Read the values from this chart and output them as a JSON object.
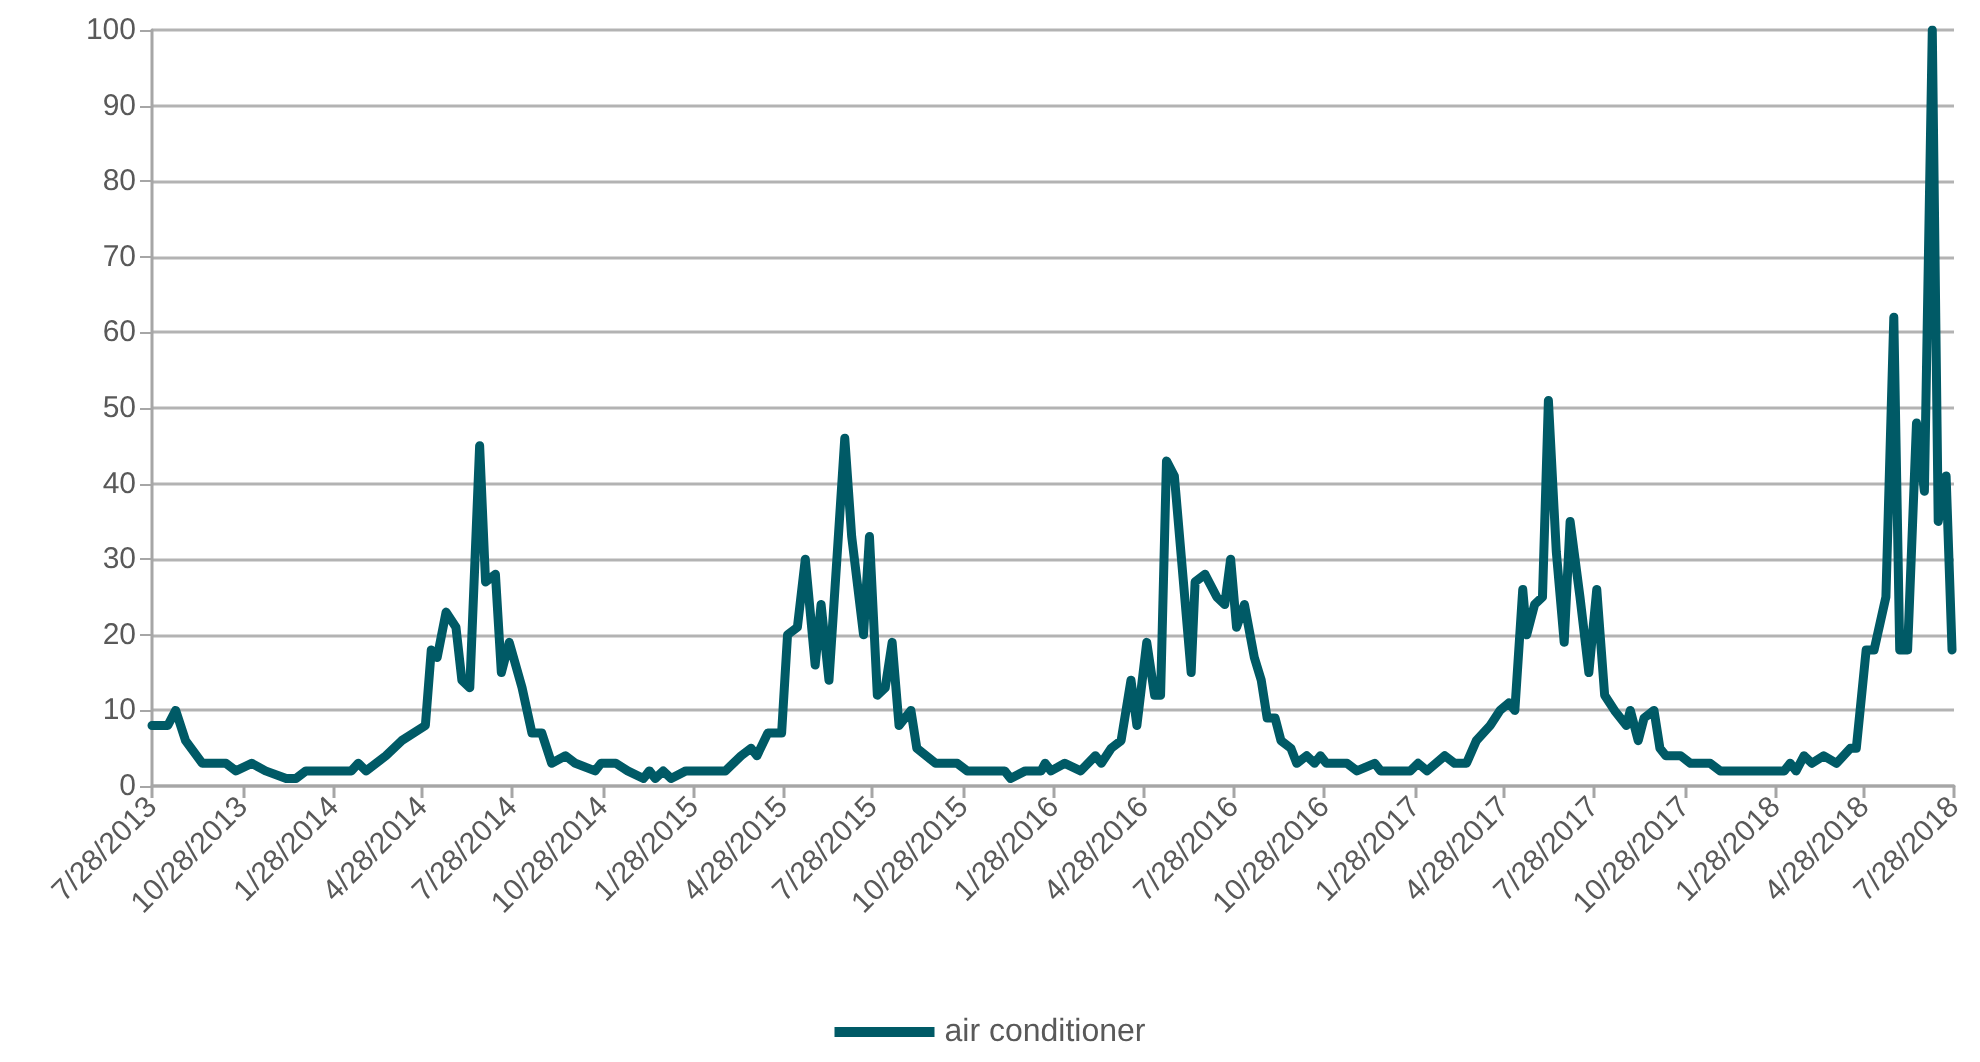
{
  "chart_data": {
    "type": "line",
    "grid": "y",
    "legend": "bottom",
    "marker": "none",
    "line_style": "solid",
    "xlim": [
      "2013-07-28",
      "2018-07-28"
    ],
    "ylim": [
      0,
      100
    ],
    "yticks": [
      0,
      10,
      20,
      30,
      40,
      50,
      60,
      70,
      80,
      90,
      100
    ],
    "xticks": [
      {
        "value": "2013-07-28",
        "label": "7/28/2013"
      },
      {
        "value": "2013-10-28",
        "label": "10/28/2013"
      },
      {
        "value": "2014-01-28",
        "label": "1/28/2014"
      },
      {
        "value": "2014-04-28",
        "label": "4/28/2014"
      },
      {
        "value": "2014-07-28",
        "label": "7/28/2014"
      },
      {
        "value": "2014-10-28",
        "label": "10/28/2014"
      },
      {
        "value": "2015-01-28",
        "label": "1/28/2015"
      },
      {
        "value": "2015-04-28",
        "label": "4/28/2015"
      },
      {
        "value": "2015-07-28",
        "label": "7/28/2015"
      },
      {
        "value": "2015-10-28",
        "label": "10/28/2015"
      },
      {
        "value": "2016-01-28",
        "label": "1/28/2016"
      },
      {
        "value": "2016-04-28",
        "label": "4/28/2016"
      },
      {
        "value": "2016-07-28",
        "label": "7/28/2016"
      },
      {
        "value": "2016-10-28",
        "label": "10/28/2016"
      },
      {
        "value": "2017-01-28",
        "label": "1/28/2017"
      },
      {
        "value": "2017-04-28",
        "label": "4/28/2017"
      },
      {
        "value": "2017-07-28",
        "label": "7/28/2017"
      },
      {
        "value": "2017-10-28",
        "label": "10/28/2017"
      },
      {
        "value": "2018-01-28",
        "label": "1/28/2018"
      },
      {
        "value": "2018-04-28",
        "label": "4/28/2018"
      },
      {
        "value": "2018-07-28",
        "label": "7/28/2018"
      }
    ],
    "x": [
      "2013-07-28",
      "2013-08-13",
      "2013-08-21",
      "2013-08-31",
      "2013-09-17",
      "2013-10-11",
      "2013-10-21",
      "2013-11-06",
      "2013-11-20",
      "2013-12-11",
      "2013-12-21",
      "2013-12-31",
      "2014-02-15",
      "2014-02-22",
      "2014-03-02",
      "2014-03-22",
      "2014-04-07",
      "2014-05-01",
      "2014-05-07",
      "2014-05-13",
      "2014-05-22",
      "2014-06-01",
      "2014-06-07",
      "2014-06-15",
      "2014-06-25",
      "2014-07-01",
      "2014-07-11",
      "2014-07-17",
      "2014-07-25",
      "2014-08-07",
      "2014-08-17",
      "2014-08-27",
      "2014-09-06",
      "2014-09-20",
      "2014-09-30",
      "2014-10-20",
      "2014-10-26",
      "2014-11-10",
      "2014-11-22",
      "2014-12-08",
      "2014-12-14",
      "2014-12-20",
      "2014-12-28",
      "2015-01-05",
      "2015-01-20",
      "2015-03-01",
      "2015-03-17",
      "2015-03-27",
      "2015-04-02",
      "2015-04-13",
      "2015-04-27",
      "2015-05-03",
      "2015-05-13",
      "2015-05-21",
      "2015-05-31",
      "2015-06-06",
      "2015-06-14",
      "2015-06-30",
      "2015-07-07",
      "2015-07-19",
      "2015-07-25",
      "2015-08-02",
      "2015-08-10",
      "2015-08-17",
      "2015-08-24",
      "2015-09-05",
      "2015-09-11",
      "2015-09-30",
      "2015-10-22",
      "2015-11-01",
      "2015-12-09",
      "2015-12-15",
      "2015-12-30",
      "2016-01-15",
      "2016-01-19",
      "2016-01-25",
      "2016-02-08",
      "2016-02-24",
      "2016-03-10",
      "2016-03-16",
      "2016-03-26",
      "2016-04-05",
      "2016-04-15",
      "2016-04-21",
      "2016-05-01",
      "2016-05-09",
      "2016-05-15",
      "2016-05-21",
      "2016-05-29",
      "2016-06-15",
      "2016-06-19",
      "2016-06-29",
      "2016-07-11",
      "2016-07-19",
      "2016-07-25",
      "2016-07-31",
      "2016-08-08",
      "2016-08-18",
      "2016-08-25",
      "2016-08-31",
      "2016-09-08",
      "2016-09-14",
      "2016-09-24",
      "2016-09-30",
      "2016-10-10",
      "2016-10-18",
      "2016-10-24",
      "2016-10-30",
      "2016-11-20",
      "2016-11-30",
      "2016-12-18",
      "2016-12-24",
      "2017-01-23",
      "2017-01-31",
      "2017-02-09",
      "2017-02-27",
      "2017-03-09",
      "2017-03-21",
      "2017-03-31",
      "2017-04-14",
      "2017-04-24",
      "2017-05-03",
      "2017-05-09",
      "2017-05-17",
      "2017-05-21",
      "2017-05-29",
      "2017-06-06",
      "2017-06-12",
      "2017-06-20",
      "2017-06-28",
      "2017-07-04",
      "2017-07-14",
      "2017-07-23",
      "2017-07-31",
      "2017-08-08",
      "2017-08-18",
      "2017-08-30",
      "2017-09-03",
      "2017-09-11",
      "2017-09-17",
      "2017-09-27",
      "2017-10-03",
      "2017-10-09",
      "2017-10-24",
      "2017-11-03",
      "2017-11-23",
      "2017-12-03",
      "2018-02-06",
      "2018-02-12",
      "2018-02-18",
      "2018-02-26",
      "2018-03-06",
      "2018-03-18",
      "2018-03-31",
      "2018-04-14",
      "2018-04-20",
      "2018-04-30",
      "2018-05-08",
      "2018-05-20",
      "2018-05-28",
      "2018-06-03",
      "2018-06-11",
      "2018-06-20",
      "2018-06-28",
      "2018-07-06",
      "2018-07-12",
      "2018-07-20",
      "2018-07-26"
    ],
    "series": [
      {
        "name": "air conditioner",
        "color": "#005a66",
        "values": [
          8,
          8,
          10,
          6,
          3,
          3,
          2,
          3,
          2,
          1,
          1,
          2,
          2,
          3,
          2,
          4,
          6,
          8,
          18,
          17,
          23,
          21,
          14,
          13,
          45,
          27,
          28,
          15,
          19,
          13,
          7,
          7,
          3,
          4,
          3,
          2,
          3,
          3,
          2,
          1,
          2,
          1,
          2,
          1,
          2,
          2,
          4,
          5,
          4,
          7,
          7,
          20,
          21,
          30,
          16,
          24,
          14,
          46,
          33,
          20,
          33,
          12,
          13,
          19,
          8,
          10,
          5,
          3,
          3,
          2,
          2,
          1,
          2,
          2,
          3,
          2,
          3,
          2,
          4,
          3,
          5,
          6,
          14,
          8,
          19,
          12,
          12,
          43,
          41,
          15,
          27,
          28,
          25,
          24,
          30,
          21,
          24,
          17,
          14,
          9,
          9,
          6,
          5,
          3,
          4,
          3,
          4,
          3,
          3,
          2,
          3,
          2,
          2,
          3,
          2,
          4,
          3,
          3,
          6,
          8,
          10,
          11,
          10,
          26,
          20,
          24,
          25,
          51,
          31,
          19,
          35,
          25,
          15,
          26,
          12,
          10,
          8,
          10,
          6,
          9,
          10,
          5,
          4,
          4,
          3,
          3,
          2,
          2,
          3,
          2,
          4,
          3,
          4,
          3,
          5,
          5,
          18,
          18,
          25,
          62,
          18,
          18,
          48,
          39,
          100,
          35,
          41,
          18
        ]
      }
    ]
  }
}
